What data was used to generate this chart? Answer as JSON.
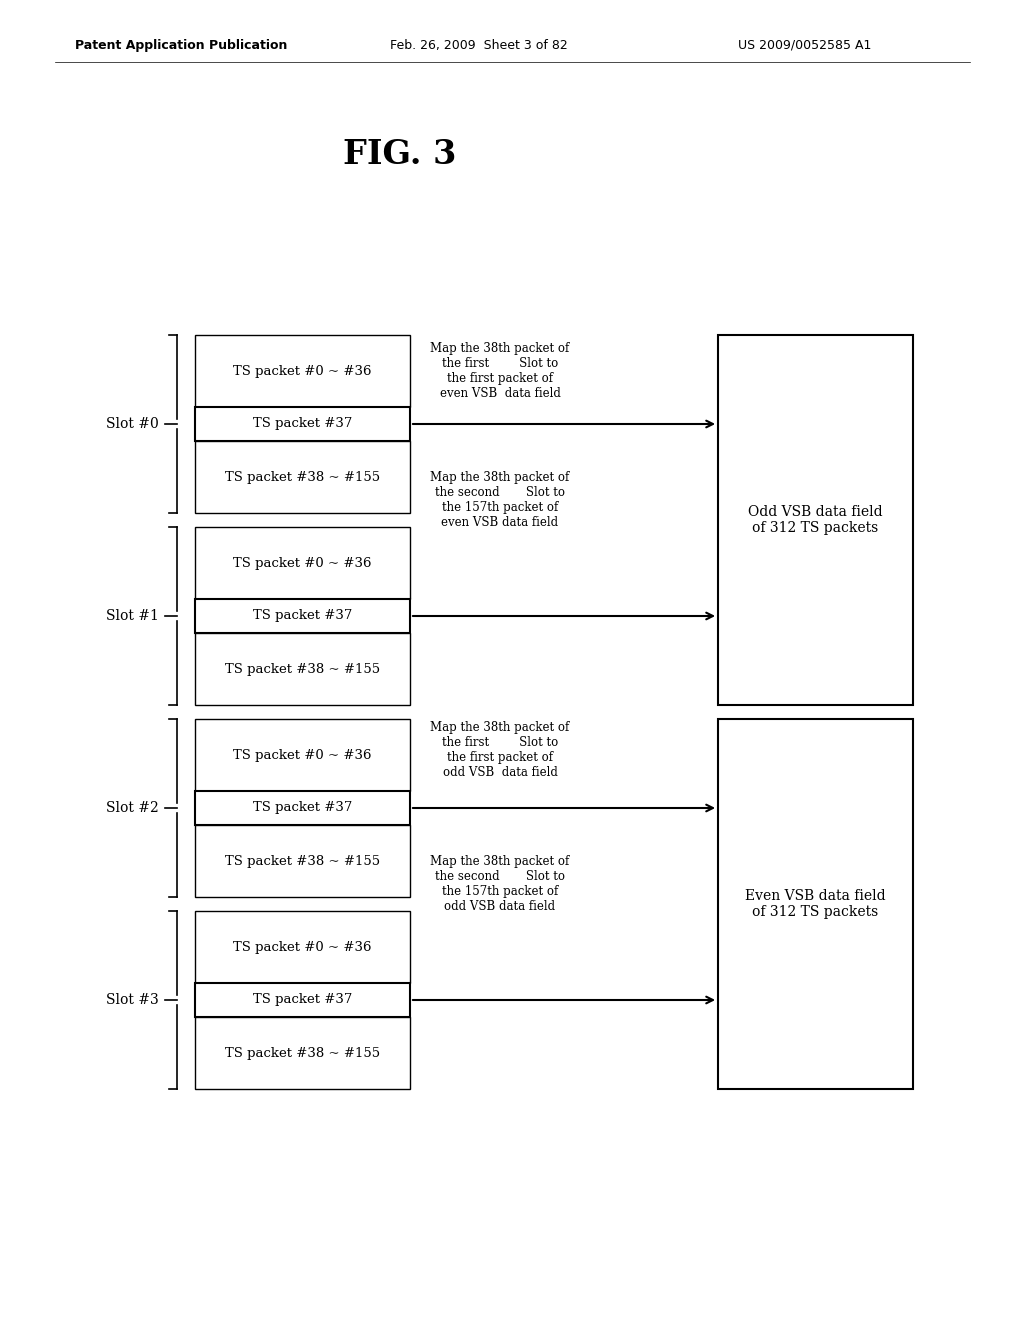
{
  "title": "FIG. 3",
  "header_left": "Patent Application Publication",
  "header_mid": "Feb. 26, 2009  Sheet 3 of 82",
  "header_right": "US 2009/0052585 A1",
  "background_color": "#ffffff",
  "slots": [
    {
      "label": "Slot #0",
      "rows": [
        "TS packet #0 ~ #36",
        "TS packet #37",
        "TS packet #38 ~ #155"
      ]
    },
    {
      "label": "Slot #1",
      "rows": [
        "TS packet #0 ~ #36",
        "TS packet #37",
        "TS packet #38 ~ #155"
      ]
    },
    {
      "label": "Slot #2",
      "rows": [
        "TS packet #0 ~ #36",
        "TS packet #37",
        "TS packet #38 ~ #155"
      ]
    },
    {
      "label": "Slot #3",
      "rows": [
        "TS packet #0 ~ #36",
        "TS packet #37",
        "TS packet #38 ~ #155"
      ]
    }
  ],
  "annotations": [
    "Map the 38th packet of\nthe first        Slot to\nthe first packet of\neven VSB  data field",
    "Map the 38th packet of\nthe second       Slot to\nthe 157th packet of\neven VSB data field",
    "Map the 38th packet of\nthe first        Slot to\nthe first packet of\nodd VSB  data field",
    "Map the 38th packet of\nthe second       Slot to\nthe 157th packet of\nodd VSB data field"
  ],
  "vsb_boxes": [
    {
      "label": "Odd VSB data field\nof 312 TS packets"
    },
    {
      "label": "Even VSB data field\nof 312 TS packets"
    }
  ],
  "header_fontsize": 9,
  "title_fontsize": 24,
  "label_fontsize": 9.5,
  "slot_label_fontsize": 10,
  "vsb_fontsize": 10,
  "ann_fontsize": 8.5
}
